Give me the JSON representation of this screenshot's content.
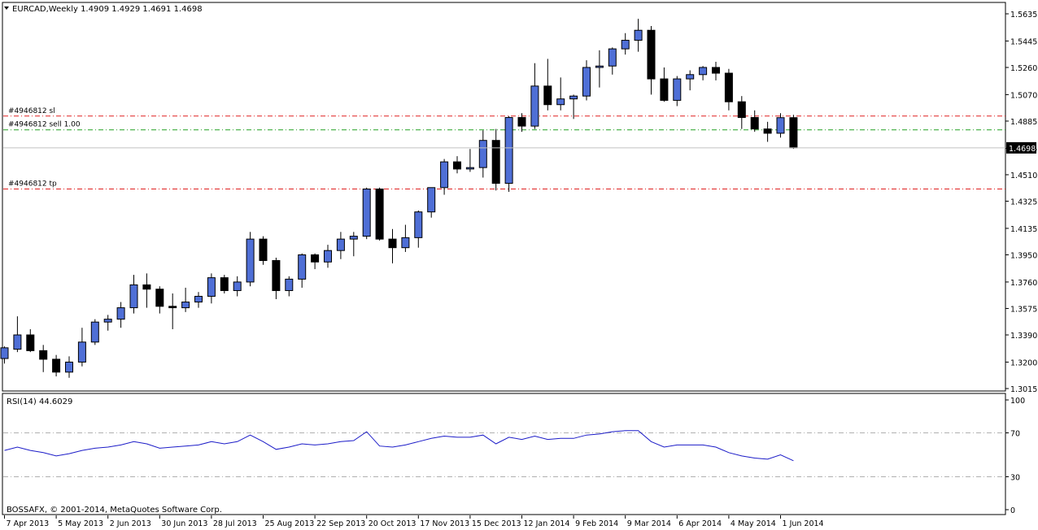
{
  "window": {
    "symbol_line": "EURCAD,Weekly  1.4909 1.4929 1.4691 1.4698",
    "copyright": "BOSSAFX, © 2001-2014, MetaQuotes Software Corp."
  },
  "chart_data": [
    {
      "type": "candlestick",
      "symbol": "EURCAD",
      "timeframe": "Weekly",
      "ohlc_header": {
        "open": 1.4909,
        "high": 1.4929,
        "low": 1.4691,
        "close": 1.4698
      },
      "ylim": [
        1.3015,
        1.5635
      ],
      "y_ticks": [
        "1.5635",
        "1.5445",
        "1.5260",
        "1.5070",
        "1.4885",
        "1.4695",
        "1.4510",
        "1.4325",
        "1.4135",
        "1.3950",
        "1.3760",
        "1.3575",
        "1.3390",
        "1.3200",
        "1.3015"
      ],
      "current_price_label": "1.4698",
      "current_price": 1.4698,
      "x_ticks": [
        "7 Apr 2013",
        "5 May 2013",
        "2 Jun 2013",
        "30 Jun 2013",
        "28 Jul 2013",
        "25 Aug 2013",
        "22 Sep 2013",
        "20 Oct 2013",
        "17 Nov 2013",
        "15 Dec 2013",
        "12 Jan 2014",
        "9 Feb 2014",
        "9 Mar 2014",
        "6 Apr 2014",
        "4 May 2014",
        "1 Jun 2014"
      ],
      "x_tick_bar_index": [
        0,
        4,
        8,
        12,
        16,
        20,
        24,
        28,
        32,
        36,
        40,
        44,
        48,
        52,
        56,
        60
      ],
      "candle_colors": {
        "bull": "#4f6fd6",
        "bear": "#000000"
      },
      "order_lines": [
        {
          "label": "#4946812 sl",
          "price": 1.492,
          "color": "#e02020"
        },
        {
          "label": "#4946812 sell 1.00",
          "price": 1.4824,
          "color": "#20a020"
        },
        {
          "label": "#4946812 tp",
          "price": 1.441,
          "color": "#e02020"
        }
      ],
      "candles": [
        [
          1.3225,
          1.331,
          1.319,
          1.33
        ],
        [
          1.329,
          1.352,
          1.327,
          1.339
        ],
        [
          1.339,
          1.343,
          1.327,
          1.328
        ],
        [
          1.328,
          1.332,
          1.313,
          1.322
        ],
        [
          1.322,
          1.325,
          1.31,
          1.313
        ],
        [
          1.313,
          1.324,
          1.309,
          1.32
        ],
        [
          1.32,
          1.344,
          1.317,
          1.334
        ],
        [
          1.334,
          1.35,
          1.332,
          1.348
        ],
        [
          1.348,
          1.353,
          1.342,
          1.35
        ],
        [
          1.35,
          1.362,
          1.344,
          1.358
        ],
        [
          1.358,
          1.381,
          1.354,
          1.374
        ],
        [
          1.374,
          1.382,
          1.358,
          1.371
        ],
        [
          1.371,
          1.373,
          1.354,
          1.359
        ],
        [
          1.359,
          1.368,
          1.343,
          1.358
        ],
        [
          1.358,
          1.372,
          1.355,
          1.362
        ],
        [
          1.362,
          1.369,
          1.358,
          1.366
        ],
        [
          1.366,
          1.382,
          1.361,
          1.379
        ],
        [
          1.379,
          1.381,
          1.368,
          1.37
        ],
        [
          1.37,
          1.38,
          1.366,
          1.376
        ],
        [
          1.376,
          1.411,
          1.373,
          1.406
        ],
        [
          1.406,
          1.408,
          1.388,
          1.391
        ],
        [
          1.391,
          1.393,
          1.364,
          1.37
        ],
        [
          1.37,
          1.38,
          1.366,
          1.378
        ],
        [
          1.378,
          1.396,
          1.372,
          1.395
        ],
        [
          1.395,
          1.396,
          1.385,
          1.39
        ],
        [
          1.39,
          1.402,
          1.386,
          1.398
        ],
        [
          1.398,
          1.411,
          1.392,
          1.406
        ],
        [
          1.406,
          1.411,
          1.394,
          1.408
        ],
        [
          1.408,
          1.442,
          1.406,
          1.441
        ],
        [
          1.441,
          1.442,
          1.405,
          1.406
        ],
        [
          1.406,
          1.413,
          1.389,
          1.4
        ],
        [
          1.4,
          1.416,
          1.397,
          1.407
        ],
        [
          1.407,
          1.426,
          1.4,
          1.425
        ],
        [
          1.425,
          1.442,
          1.421,
          1.442
        ],
        [
          1.442,
          1.462,
          1.437,
          1.46
        ],
        [
          1.46,
          1.464,
          1.452,
          1.455
        ],
        [
          1.455,
          1.469,
          1.453,
          1.456
        ],
        [
          1.456,
          1.482,
          1.449,
          1.475
        ],
        [
          1.475,
          1.483,
          1.44,
          1.445
        ],
        [
          1.445,
          1.492,
          1.439,
          1.491
        ],
        [
          1.491,
          1.494,
          1.481,
          1.485
        ],
        [
          1.485,
          1.529,
          1.483,
          1.513
        ],
        [
          1.513,
          1.532,
          1.496,
          1.5
        ],
        [
          1.5,
          1.519,
          1.496,
          1.504
        ],
        [
          1.504,
          1.507,
          1.49,
          1.506
        ],
        [
          1.506,
          1.531,
          1.503,
          1.526
        ],
        [
          1.526,
          1.538,
          1.512,
          1.527
        ],
        [
          1.527,
          1.54,
          1.521,
          1.539
        ],
        [
          1.539,
          1.55,
          1.535,
          1.545
        ],
        [
          1.545,
          1.56,
          1.537,
          1.552
        ],
        [
          1.552,
          1.555,
          1.507,
          1.518
        ],
        [
          1.518,
          1.526,
          1.502,
          1.503
        ],
        [
          1.503,
          1.52,
          1.499,
          1.518
        ],
        [
          1.518,
          1.524,
          1.51,
          1.521
        ],
        [
          1.521,
          1.527,
          1.517,
          1.526
        ],
        [
          1.526,
          1.53,
          1.517,
          1.522
        ],
        [
          1.522,
          1.525,
          1.496,
          1.502
        ],
        [
          1.502,
          1.506,
          1.483,
          1.491
        ],
        [
          1.491,
          1.496,
          1.481,
          1.483
        ],
        [
          1.483,
          1.488,
          1.474,
          1.48
        ],
        [
          1.48,
          1.494,
          1.477,
          1.4909
        ],
        [
          1.4909,
          1.4929,
          1.4691,
          1.4698
        ]
      ]
    },
    {
      "type": "line",
      "title": "RSI(14) 44.6029",
      "ylim": [
        0,
        100
      ],
      "y_ticks": [
        "100",
        "70",
        "30",
        "0"
      ],
      "levels": [
        70,
        30
      ],
      "series": [
        {
          "name": "RSI(14)",
          "color": "#1c1cc8",
          "values": [
            54,
            57,
            54,
            52,
            49,
            51,
            54,
            56,
            57,
            59,
            62,
            60,
            56,
            57,
            58,
            59,
            62,
            60,
            62,
            68,
            62,
            55,
            57,
            60,
            59,
            60,
            62,
            63,
            71,
            58,
            57,
            59,
            62,
            65,
            67,
            66,
            66,
            68,
            60,
            66,
            64,
            67,
            64,
            65,
            65,
            68,
            69,
            71,
            72,
            72,
            62,
            57,
            59,
            59,
            59,
            57,
            52,
            49,
            47,
            46,
            50,
            44.6
          ]
        }
      ]
    }
  ]
}
